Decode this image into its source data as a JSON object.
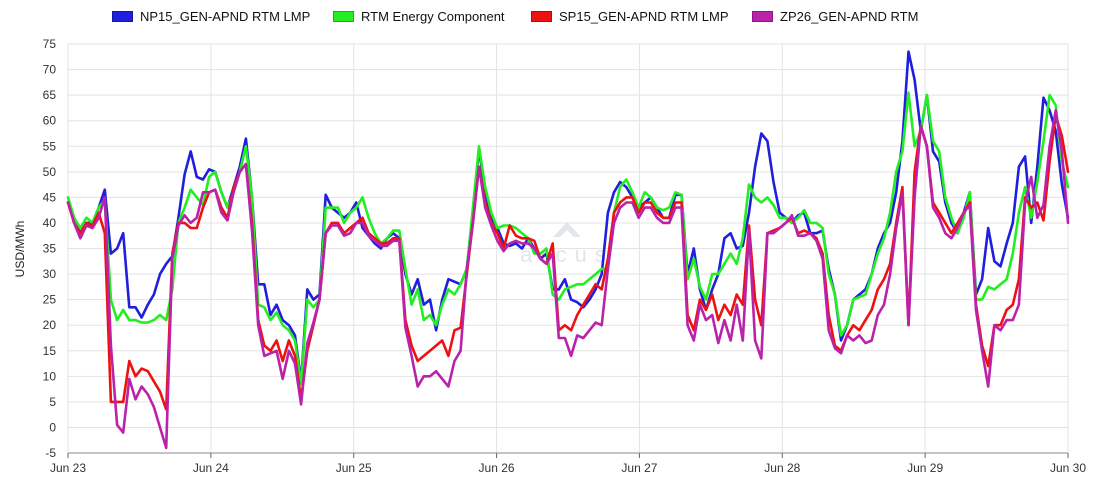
{
  "chart_data": {
    "type": "line",
    "title": "",
    "xlabel": "",
    "ylabel": "USD/MWh",
    "ylim": [
      -5,
      75
    ],
    "yticks": [
      -5,
      0,
      5,
      10,
      15,
      20,
      25,
      30,
      35,
      40,
      45,
      50,
      55,
      60,
      65,
      70,
      75
    ],
    "x_start": "Jun 23",
    "x_end": "Jun 30",
    "x_ticks": [
      "Jun 23",
      "Jun 24",
      "Jun 25",
      "Jun 26",
      "Jun 27",
      "Jun 28",
      "Jun 29",
      "Jun 30"
    ],
    "points_per_day": 24,
    "grid": true,
    "legend_position": "top-center",
    "watermark": "arcus",
    "series": [
      {
        "name": "NP15_GEN-APND RTM LMP",
        "color": "#1f1fdd",
        "values": [
          44,
          41,
          38,
          40,
          40,
          43,
          46.5,
          34,
          35,
          38,
          23.5,
          23.5,
          21.5,
          24,
          26,
          30,
          32,
          33.5,
          41,
          49.5,
          54,
          49,
          48.5,
          50.5,
          50,
          46,
          43,
          47,
          51,
          56.5,
          45,
          28,
          28,
          22,
          24,
          21,
          20,
          18,
          9,
          27,
          25,
          26,
          45.5,
          43,
          42,
          41,
          42,
          44,
          39,
          37.5,
          36,
          35,
          37,
          38,
          37,
          30,
          26,
          29,
          24,
          25,
          19,
          25,
          29,
          28.5,
          28,
          31,
          42,
          54.5,
          46,
          41,
          39,
          36,
          35.5,
          36,
          35,
          37,
          35,
          33,
          34,
          27,
          27,
          29,
          25,
          24.5,
          23.5,
          25,
          27,
          30,
          42,
          46,
          48,
          47,
          45,
          43,
          44,
          45,
          43,
          41,
          41,
          45.5,
          45.5,
          30,
          35,
          27,
          23,
          27,
          30,
          37,
          38,
          35,
          35.5,
          42,
          51,
          57.5,
          56,
          48,
          42,
          41,
          40,
          41.5,
          42,
          38,
          38,
          38.5,
          31,
          26,
          17,
          20,
          25,
          26,
          27,
          30,
          35,
          38,
          40,
          46,
          56,
          73.5,
          68,
          58,
          65,
          54,
          52,
          44,
          40,
          38,
          42,
          46,
          26,
          29,
          39,
          32.5,
          31.5,
          36,
          40,
          51,
          53,
          40,
          51,
          64.5,
          62,
          58,
          47.5,
          41
        ]
      },
      {
        "name": "RTM Energy Component",
        "color": "#22ee22",
        "values": [
          45,
          41,
          39,
          41,
          40,
          43,
          44.5,
          25,
          21,
          23,
          21,
          21,
          20.5,
          20.5,
          21,
          22,
          21,
          27,
          40,
          43,
          46.5,
          45,
          43.5,
          49,
          50,
          46,
          43,
          46,
          50,
          55,
          45,
          24,
          23.5,
          21,
          22.5,
          20,
          19,
          17,
          8.5,
          25,
          23.5,
          25,
          43,
          43,
          43,
          40,
          42,
          43,
          45,
          41,
          38,
          36,
          37,
          38.5,
          38.5,
          31,
          24,
          27,
          21,
          22,
          20,
          24,
          27,
          26,
          28,
          31,
          43,
          55,
          47,
          42,
          39,
          39.5,
          39.5,
          39,
          38,
          37,
          34,
          34,
          35,
          26,
          25,
          27,
          27.5,
          28,
          28,
          29,
          30,
          31,
          31,
          42,
          47,
          48.5,
          46,
          43,
          46,
          45,
          43,
          42.5,
          43,
          46,
          45.5,
          29,
          33,
          27.5,
          25,
          30,
          30,
          32,
          34,
          32,
          37,
          47.5,
          45,
          44,
          45,
          43.5,
          41,
          41,
          40,
          41,
          42.5,
          40,
          40,
          39,
          30,
          26,
          18,
          20,
          25,
          25.5,
          26,
          30,
          34,
          37,
          42,
          50,
          54,
          65.5,
          55,
          58,
          65,
          56,
          54,
          45,
          41,
          38,
          41,
          46,
          25,
          25,
          27.5,
          27,
          28,
          29,
          34,
          42,
          47,
          41,
          48,
          56,
          65,
          63,
          52,
          47
        ]
      },
      {
        "name": "SP15_GEN-APND RTM LMP",
        "color": "#ee1111",
        "values": [
          44,
          40,
          38,
          40,
          39.5,
          42,
          38,
          5,
          5,
          5,
          13,
          10,
          11.5,
          11,
          9,
          7,
          3.5,
          34,
          40,
          40,
          39,
          39,
          43,
          46,
          46.5,
          43,
          41,
          47,
          50,
          51.5,
          40,
          21,
          16,
          15,
          17,
          13,
          17,
          14,
          5.5,
          15,
          20,
          25,
          38,
          40,
          40,
          38,
          39,
          40,
          41,
          38,
          37,
          36,
          36,
          37,
          37,
          21,
          16,
          13,
          14,
          15,
          16,
          17,
          14,
          19,
          19.5,
          30,
          40,
          51,
          44,
          40,
          38,
          35,
          39.5,
          37.5,
          37,
          37,
          36.5,
          33,
          32,
          36,
          19,
          20,
          19,
          22,
          24,
          26,
          28,
          27,
          33,
          42,
          44,
          45,
          45,
          42,
          44,
          44,
          42,
          41,
          41,
          44,
          44,
          22,
          19,
          25,
          23,
          26,
          21,
          24,
          22,
          26,
          24,
          39.5,
          25,
          20,
          38,
          38.5,
          39,
          40,
          41,
          38,
          38.5,
          38,
          37,
          34,
          22,
          16,
          15,
          18,
          20,
          19,
          21,
          23,
          27,
          29,
          32,
          40,
          47,
          20,
          50,
          59,
          55,
          44,
          42,
          40,
          38,
          40,
          42,
          44,
          24,
          16,
          12,
          20,
          20,
          23,
          24,
          29,
          45,
          43,
          44,
          40.5,
          52,
          61,
          57,
          50
        ]
      },
      {
        "name": "ZP26_GEN-APND RTM",
        "color": "#bb22aa",
        "values": [
          44,
          40,
          37,
          39.5,
          39,
          41,
          45,
          16,
          0.5,
          -1,
          9.5,
          5.5,
          8,
          6.5,
          4,
          0,
          -4,
          33,
          39.5,
          41.5,
          40,
          41,
          46,
          46,
          46.5,
          42,
          40.5,
          46,
          50,
          51.5,
          38.5,
          20,
          14,
          14.5,
          15,
          9.5,
          15,
          12.5,
          4.5,
          16.5,
          20.5,
          25,
          38,
          39.5,
          39.5,
          37.5,
          38,
          40,
          40,
          37.5,
          36.5,
          35.5,
          35.5,
          36.5,
          36.5,
          19.5,
          14,
          8,
          10,
          10,
          11,
          9.5,
          8,
          13,
          15,
          31,
          40,
          51,
          43,
          39.5,
          36.5,
          34.5,
          36,
          36.5,
          36,
          36,
          35,
          33,
          32,
          34,
          17.5,
          17.5,
          14,
          18,
          17.5,
          19,
          20.5,
          20,
          31,
          40,
          43,
          44,
          44,
          41,
          43,
          43,
          41,
          40,
          40,
          43,
          43,
          20,
          17,
          24,
          21,
          22,
          16.5,
          21,
          17,
          24,
          17,
          38.5,
          17,
          13.5,
          38,
          38,
          39,
          40,
          41.5,
          37.5,
          37.5,
          38,
          36.5,
          33,
          19,
          15.5,
          14.5,
          18,
          17,
          18,
          16.5,
          17,
          22,
          24,
          30,
          39,
          46,
          20,
          45,
          59,
          55,
          43,
          41,
          38,
          37,
          39,
          42,
          43.5,
          23,
          15,
          8,
          20,
          19,
          21,
          21,
          24,
          44,
          49,
          41,
          43.5,
          55,
          62,
          54,
          40
        ]
      }
    ]
  }
}
